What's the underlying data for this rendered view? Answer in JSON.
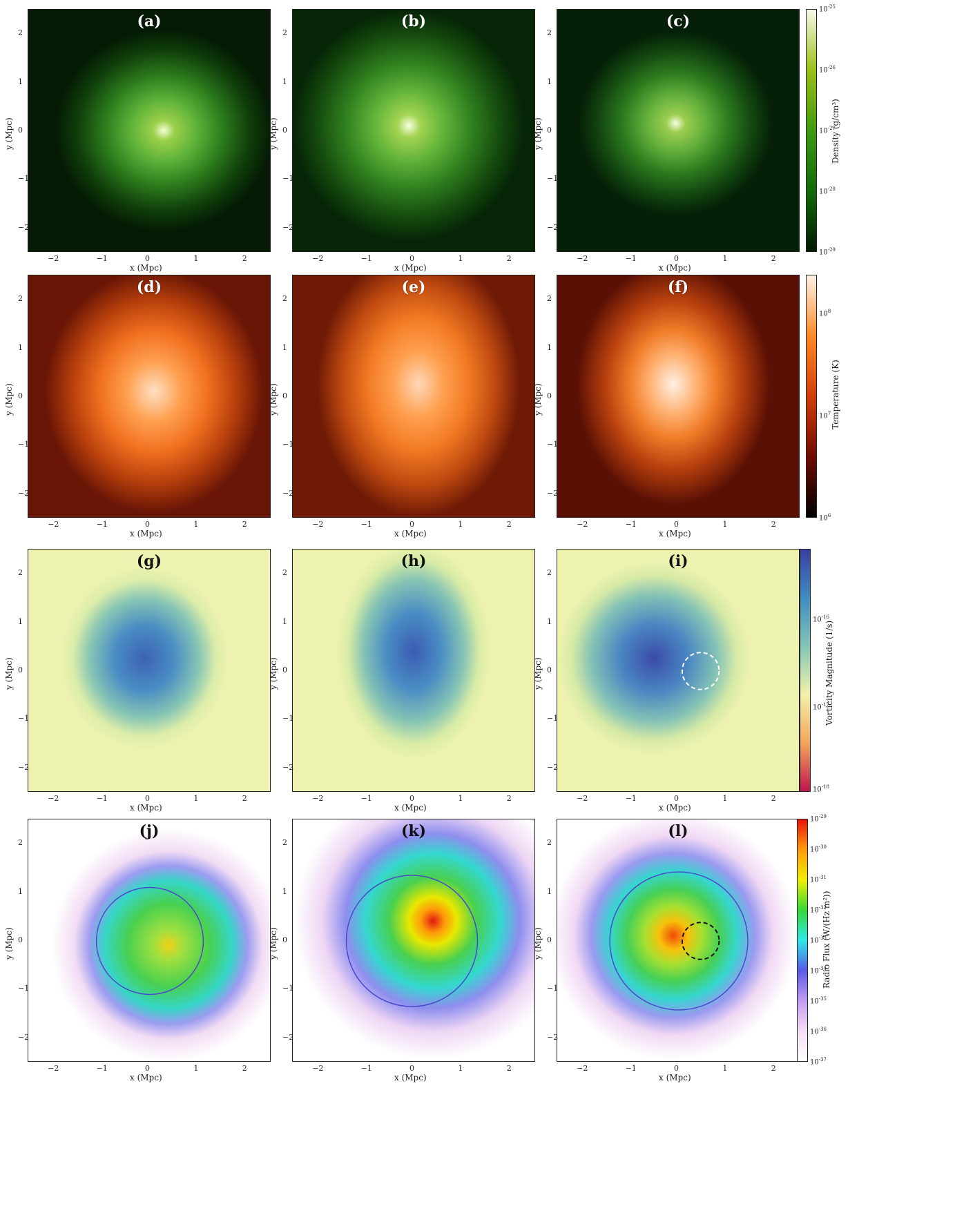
{
  "panels": [
    {
      "letter": "(a)",
      "row": 0
    },
    {
      "letter": "(b)",
      "row": 0
    },
    {
      "letter": "(c)",
      "row": 0
    },
    {
      "letter": "(d)",
      "row": 1
    },
    {
      "letter": "(e)",
      "row": 1
    },
    {
      "letter": "(f)",
      "row": 1
    },
    {
      "letter": "(g)",
      "row": 2
    },
    {
      "letter": "(h)",
      "row": 2
    },
    {
      "letter": "(i)",
      "row": 2
    },
    {
      "letter": "(j)",
      "row": 3
    },
    {
      "letter": "(k)",
      "row": 3
    },
    {
      "letter": "(l)",
      "row": 3
    }
  ],
  "axes": {
    "xlabel": "x  (Mpc)",
    "ylabel": "y  (Mpc)",
    "xticks": [
      "−2",
      "−1",
      "0",
      "1",
      "2"
    ],
    "yticks": [
      "2",
      "1",
      "0",
      "−1",
      "−2"
    ],
    "xlim": [
      -2.5,
      2.5
    ],
    "ylim": [
      -2.5,
      2.5
    ]
  },
  "colorbars": [
    {
      "label": "Density (g/cm³)",
      "ticks": [
        "10-25",
        "10-26",
        "10-27",
        "10-28",
        "10-29"
      ],
      "colors": [
        "#f6fbe9",
        "#9bc01a",
        "#3f9a12",
        "#126a0a",
        "#021a02"
      ]
    },
    {
      "label": "Temperature (K)",
      "ticks": [
        "10⁸",
        "10⁷",
        "10⁶"
      ],
      "colors": [
        "#fff3e6",
        "#ff8a2a",
        "#d0400a",
        "#6e0c02",
        "#000000"
      ]
    },
    {
      "label": "Vorticity Magnitude (1/s)",
      "ticks": [
        "10-16",
        "10-17",
        "10-18"
      ],
      "colors": [
        "#3a3fa0",
        "#3f8cc2",
        "#83c6b6",
        "#f2f2a8",
        "#f3a65c",
        "#c0154c"
      ]
    },
    {
      "label": "Radio Flux (W/(Hz m²))",
      "ticks": [
        "10-29",
        "10-30",
        "10-31",
        "10-32",
        "10-33",
        "10-34",
        "10-35",
        "10-36",
        "10-37"
      ],
      "colors": [
        "#e8150e",
        "#ff9b0a",
        "#f0f000",
        "#38d838",
        "#2ee8e8",
        "#5a5ae8",
        "#c29cf2",
        "#f6ddf6",
        "#ffffff"
      ]
    }
  ],
  "cbar_tick_parts": [
    [
      {
        "b": "10",
        "e": "-25"
      },
      {
        "b": "10",
        "e": "-26"
      },
      {
        "b": "10",
        "e": "-27"
      },
      {
        "b": "10",
        "e": "-28"
      },
      {
        "b": "10",
        "e": "-29"
      }
    ],
    [
      {
        "b": "10",
        "e": "8"
      },
      {
        "b": "10",
        "e": "7"
      },
      {
        "b": "10",
        "e": "6"
      }
    ],
    [
      {
        "b": "10",
        "e": "-16"
      },
      {
        "b": "10",
        "e": "-17"
      },
      {
        "b": "10",
        "e": "-18"
      }
    ],
    [
      {
        "b": "10",
        "e": "-29"
      },
      {
        "b": "10",
        "e": "-30"
      },
      {
        "b": "10",
        "e": "-31"
      },
      {
        "b": "10",
        "e": "-32"
      },
      {
        "b": "10",
        "e": "-33"
      },
      {
        "b": "10",
        "e": "-34"
      },
      {
        "b": "10",
        "e": "-35"
      },
      {
        "b": "10",
        "e": "-36"
      },
      {
        "b": "10",
        "e": "-37"
      }
    ]
  ],
  "circles": {
    "j": {
      "cx": 0.0,
      "cy": 0.0,
      "r": 1.1,
      "color": "#4a4acb",
      "dash": false
    },
    "k": {
      "cx": -0.05,
      "cy": 0.0,
      "r": 1.35,
      "color": "#4a4acb",
      "dash": false
    },
    "l": {
      "cx": 0.0,
      "cy": 0.0,
      "r": 1.42,
      "color": "#4a4acb",
      "dash": false
    },
    "l_inner": {
      "cx": 0.45,
      "cy": 0.0,
      "r": 0.38,
      "color": "#111111",
      "dash": true
    },
    "i_inner": {
      "cx": 0.45,
      "cy": 0.0,
      "r": 0.38,
      "color": "#ffffff",
      "dash": true
    }
  }
}
